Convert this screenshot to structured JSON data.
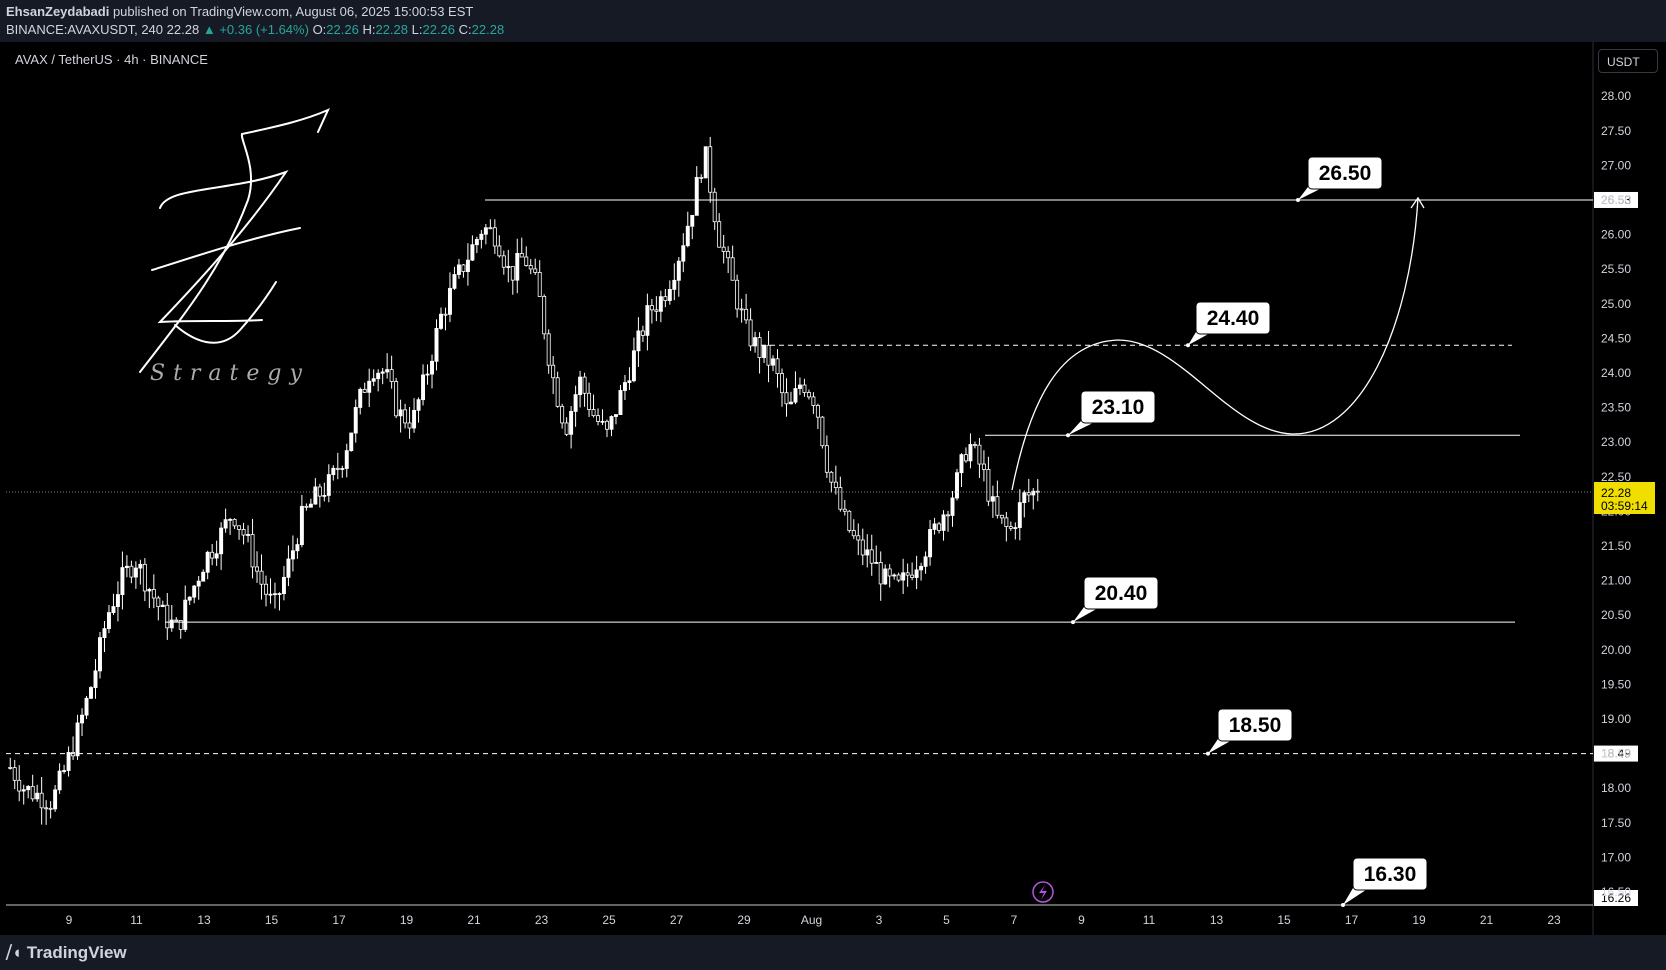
{
  "header": {
    "author": "EhsanZeydabadi",
    "published": "published on TradingView.com, August 06, 2025 15:00:53 EST",
    "symbol": "BINANCE:AVAXUSDT, 240",
    "last": "22.28",
    "change": "+0.36 (+1.64%)",
    "o_label": "O:",
    "o": "22.26",
    "h_label": "H:",
    "h": "22.28",
    "l_label": "L:",
    "l": "22.26",
    "c_label": "C:",
    "c": "22.28"
  },
  "chart_title": "AVAX / TetherUS · 4h · BINANCE",
  "currency_button": "USDT",
  "logo_text": "Strategy",
  "brand": "TradingView",
  "colors": {
    "background": "#000000",
    "candle": "#ffffff",
    "price_tag": "#f0de00",
    "axis_tag": "#ffffff",
    "ui_bar": "#161a25"
  },
  "chart_data": {
    "type": "candlestick",
    "yaxis_ticks": [
      "28.00",
      "27.50",
      "27.00",
      "26.50",
      "26.00",
      "25.50",
      "25.00",
      "24.50",
      "24.00",
      "23.50",
      "23.00",
      "22.50",
      "22.00",
      "21.50",
      "21.00",
      "20.50",
      "20.00",
      "19.50",
      "19.00",
      "18.50",
      "18.00",
      "17.50",
      "17.00",
      "16.50"
    ],
    "xaxis_ticks": [
      "9",
      "11",
      "13",
      "15",
      "17",
      "19",
      "21",
      "23",
      "25",
      "27",
      "29",
      "Aug",
      "3",
      "5",
      "7",
      "9",
      "11",
      "13",
      "15",
      "17",
      "19",
      "21",
      "23"
    ],
    "ylim": [
      16.2,
      28.3
    ],
    "close_path": [
      18.3,
      18.0,
      17.9,
      17.8,
      18.3,
      18.9,
      19.6,
      20.5,
      21.0,
      21.3,
      20.9,
      20.5,
      20.3,
      20.8,
      21.3,
      21.6,
      22.0,
      21.6,
      21.0,
      20.6,
      21.2,
      21.9,
      22.2,
      22.4,
      22.8,
      23.5,
      24.1,
      24.0,
      23.4,
      23.3,
      24.0,
      24.8,
      25.3,
      25.7,
      26.1,
      26.0,
      25.4,
      25.7,
      25.2,
      24.0,
      23.2,
      23.9,
      23.4,
      23.1,
      23.7,
      24.3,
      24.9,
      25.1,
      25.6,
      26.3,
      27.2,
      26.0,
      25.3,
      24.6,
      24.3,
      24.1,
      23.4,
      23.9,
      23.6,
      22.5,
      21.9,
      21.5,
      21.3,
      21.0,
      20.9,
      21.2,
      21.5,
      21.9,
      22.3,
      23.0,
      22.6,
      21.9,
      21.7,
      22.2,
      22.3
    ],
    "last_price": "22.28",
    "countdown": "03:59:14",
    "levels": [
      {
        "label": "26.50",
        "axis_value": "26.53",
        "style": "solid"
      },
      {
        "label": "24.40",
        "style": "dashed"
      },
      {
        "label": "23.10",
        "style": "solid"
      },
      {
        "label": "20.40",
        "style": "solid"
      },
      {
        "label": "18.50",
        "axis_value": "18.49",
        "style": "dashed"
      },
      {
        "label": "16.30",
        "axis_value": "16.26",
        "style": "solid"
      }
    ],
    "projection": "curved path from 22.3 up to 24.5, down to 23.1, then up to 26.5 with arrow",
    "grid": false
  }
}
